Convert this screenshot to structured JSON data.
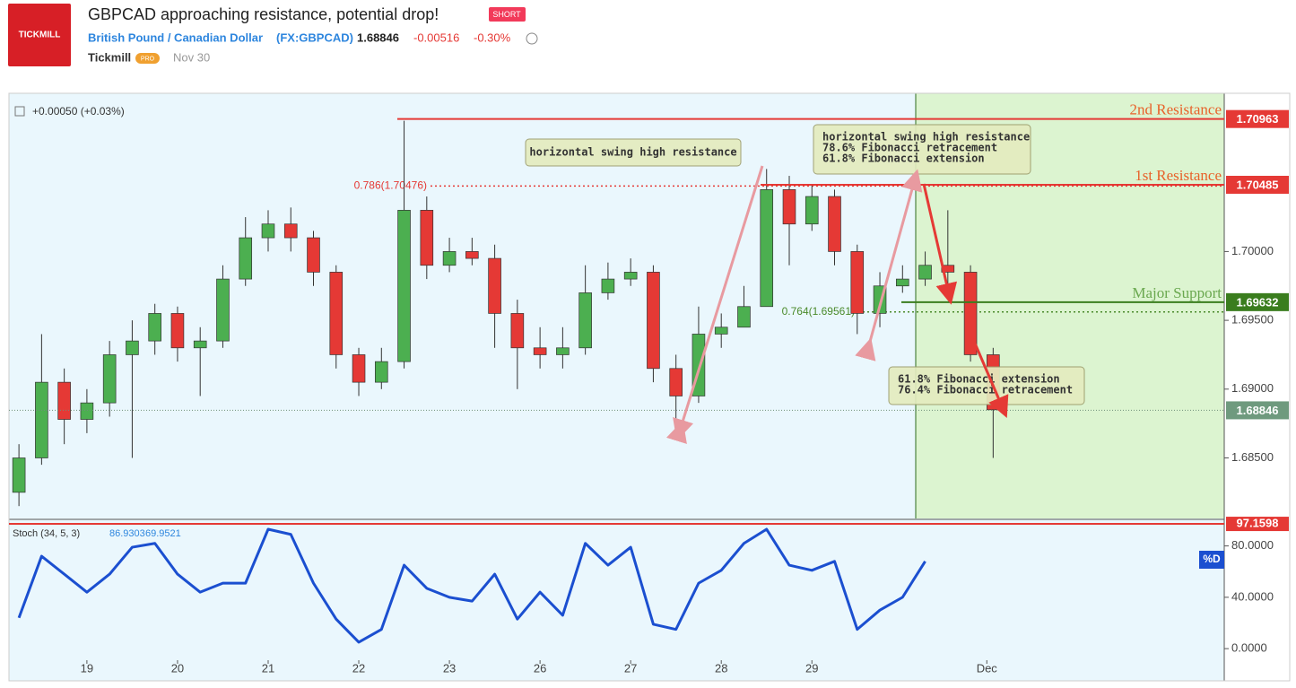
{
  "header": {
    "logo": "TICKMILL",
    "title": "GBPCAD approaching resistance, potential drop!",
    "badge": "SHORT",
    "instrument": "British Pound / Canadian Dollar",
    "symbol": "(FX:GBPCAD)",
    "price": 1.68846,
    "change": "-0.00516",
    "change_pct": "-0.30%",
    "author": "Tickmill",
    "author_badge": "PRO",
    "date": "Nov 30"
  },
  "chart_data": [
    {
      "type": "candlestick",
      "legend": "+0.00050 (+0.03%)",
      "xlim": [
        -0.86,
        12.55
      ],
      "ylim": [
        1.6806,
        1.7115
      ],
      "xticks": [
        {
          "value": 0,
          "label": "19"
        },
        {
          "value": 1,
          "label": "20"
        },
        {
          "value": 2,
          "label": "21"
        },
        {
          "value": 3,
          "label": "22"
        },
        {
          "value": 4,
          "label": "23"
        },
        {
          "value": 5,
          "label": "26"
        },
        {
          "value": 6,
          "label": "27"
        },
        {
          "value": 7,
          "label": "28"
        },
        {
          "value": 8,
          "label": "29"
        },
        {
          "value": 9.93,
          "label": "Dec"
        }
      ],
      "yticks": [
        {
          "value": 1.685,
          "label": "1.68500"
        },
        {
          "value": 1.69,
          "label": "1.69000"
        },
        {
          "value": 1.695,
          "label": "1.69500"
        },
        {
          "value": 1.7,
          "label": "1.70000"
        }
      ],
      "grid": false,
      "up_color": "#4caf50",
      "down_color": "#e53935",
      "x": [
        -0.75,
        -0.5,
        -0.25,
        0,
        0.25,
        0.5,
        0.75,
        1,
        1.25,
        1.5,
        1.75,
        2,
        2.25,
        2.5,
        2.75,
        3,
        3.25,
        3.5,
        3.75,
        4,
        4.25,
        4.5,
        4.75,
        5,
        5.25,
        5.5,
        5.75,
        6,
        6.25,
        6.5,
        6.75,
        7,
        7.25,
        7.5,
        7.75,
        8,
        8.25,
        8.5,
        8.75,
        9,
        9.25,
        9.5,
        9.75,
        10
      ],
      "open": [
        1.6825,
        1.685,
        1.6905,
        1.6878,
        1.689,
        1.6925,
        1.6935,
        1.6955,
        1.693,
        1.6935,
        1.698,
        1.701,
        1.702,
        1.701,
        1.6985,
        1.6925,
        1.6905,
        1.692,
        1.703,
        1.699,
        1.7,
        1.6995,
        1.6955,
        1.693,
        1.6925,
        1.693,
        1.697,
        1.698,
        1.6985,
        1.6915,
        1.6895,
        1.694,
        1.6945,
        1.696,
        1.7045,
        1.702,
        1.704,
        1.7,
        1.6955,
        1.6975,
        1.698,
        1.699,
        1.6985,
        1.6925
      ],
      "high": [
        1.686,
        1.694,
        1.6915,
        1.69,
        1.6935,
        1.695,
        1.6962,
        1.696,
        1.6945,
        1.699,
        1.7025,
        1.703,
        1.7032,
        1.7015,
        1.699,
        1.693,
        1.693,
        1.7095,
        1.704,
        1.701,
        1.701,
        1.7005,
        1.6965,
        1.6945,
        1.6945,
        1.699,
        1.6992,
        1.6995,
        1.699,
        1.6925,
        1.696,
        1.6955,
        1.6975,
        1.706,
        1.7055,
        1.7048,
        1.7045,
        1.7005,
        1.6985,
        1.699,
        1.7,
        1.703,
        1.699,
        1.693
      ],
      "low": [
        1.6815,
        1.6845,
        1.686,
        1.6868,
        1.688,
        1.685,
        1.6925,
        1.692,
        1.6895,
        1.693,
        1.6975,
        1.7,
        1.7,
        1.6975,
        1.6915,
        1.6895,
        1.69,
        1.6915,
        1.698,
        1.6985,
        1.699,
        1.693,
        1.69,
        1.6915,
        1.6915,
        1.6925,
        1.6965,
        1.6975,
        1.6905,
        1.687,
        1.689,
        1.693,
        1.6945,
        1.696,
        1.699,
        1.7015,
        1.699,
        1.694,
        1.6945,
        1.697,
        1.6975,
        1.6975,
        1.692,
        1.685
      ],
      "close": [
        1.685,
        1.6905,
        1.6878,
        1.689,
        1.6925,
        1.6935,
        1.6955,
        1.693,
        1.6935,
        1.698,
        1.701,
        1.702,
        1.701,
        1.6985,
        1.6925,
        1.6905,
        1.692,
        1.703,
        1.699,
        1.7,
        1.6995,
        1.6955,
        1.693,
        1.6925,
        1.693,
        1.697,
        1.698,
        1.6985,
        1.6915,
        1.6895,
        1.694,
        1.6945,
        1.696,
        1.7045,
        1.702,
        1.704,
        1.7,
        1.6955,
        1.6975,
        1.698,
        1.699,
        1.6985,
        1.6925,
        1.6885
      ],
      "levels": [
        {
          "label": "2nd Resistance",
          "value": 1.70963,
          "color": "#e53935",
          "text_color": "#e8622a"
        },
        {
          "label": "1st Resistance",
          "value": 1.70485,
          "color": "#e53935",
          "text_color": "#e8622a"
        },
        {
          "label": "Major Support",
          "value": 1.69632,
          "color": "#3a7d1e",
          "text_color": "#6aa84f"
        }
      ],
      "fib_levels": [
        {
          "label": "0.786(1.70476)",
          "value": 1.70476,
          "color": "#e53935"
        },
        {
          "label": "0.764(1.69561)",
          "value": 1.69561,
          "color": "#4a8a2a"
        }
      ],
      "annotations": [
        {
          "lines": [
            "horizontal swing high resistance"
          ]
        },
        {
          "lines": [
            "horizontal swing high resistance",
            "78.6% Fibonacci retracement",
            "61.8% Fibonacci extension"
          ]
        },
        {
          "lines": [
            "61.8% Fibonacci extension",
            "76.4% Fibonacci retracement"
          ]
        }
      ]
    },
    {
      "type": "line",
      "title": "Stoch (34, 5, 3)",
      "k_value": 86.9303,
      "d_value": 69.9521,
      "xlim": [
        -0.86,
        12.55
      ],
      "ylim": [
        -8.3,
        97.9
      ],
      "yticks": [
        {
          "value": 0,
          "label": "0.0000"
        },
        {
          "value": 40,
          "label": "40.0000"
        },
        {
          "value": 80,
          "label": "80.0000"
        }
      ],
      "level": 97.1598,
      "level_color": "#e53935",
      "x": [
        -0.75,
        -0.5,
        -0.25,
        0,
        0.25,
        0.5,
        0.75,
        1,
        1.25,
        1.5,
        1.75,
        2,
        2.25,
        2.5,
        2.75,
        3,
        3.25,
        3.5,
        3.75,
        4,
        4.25,
        4.5,
        4.75,
        5,
        5.25,
        5.5,
        5.75,
        6,
        6.25,
        6.5,
        6.75,
        7,
        7.25,
        7.5,
        7.75,
        8,
        8.25,
        8.5,
        8.75,
        9,
        9.25
      ],
      "series": [
        {
          "name": "%D",
          "color": "#1b4fd0",
          "values": [
            24,
            72,
            58,
            44,
            58,
            79,
            82,
            58,
            44,
            51,
            51,
            93,
            89,
            51,
            23,
            5,
            15,
            65,
            47,
            40,
            37,
            58,
            23,
            44,
            26,
            82,
            65,
            79,
            19,
            15,
            51,
            61,
            82,
            93,
            65,
            61,
            68,
            15,
            30,
            40,
            68
          ]
        }
      ]
    }
  ]
}
